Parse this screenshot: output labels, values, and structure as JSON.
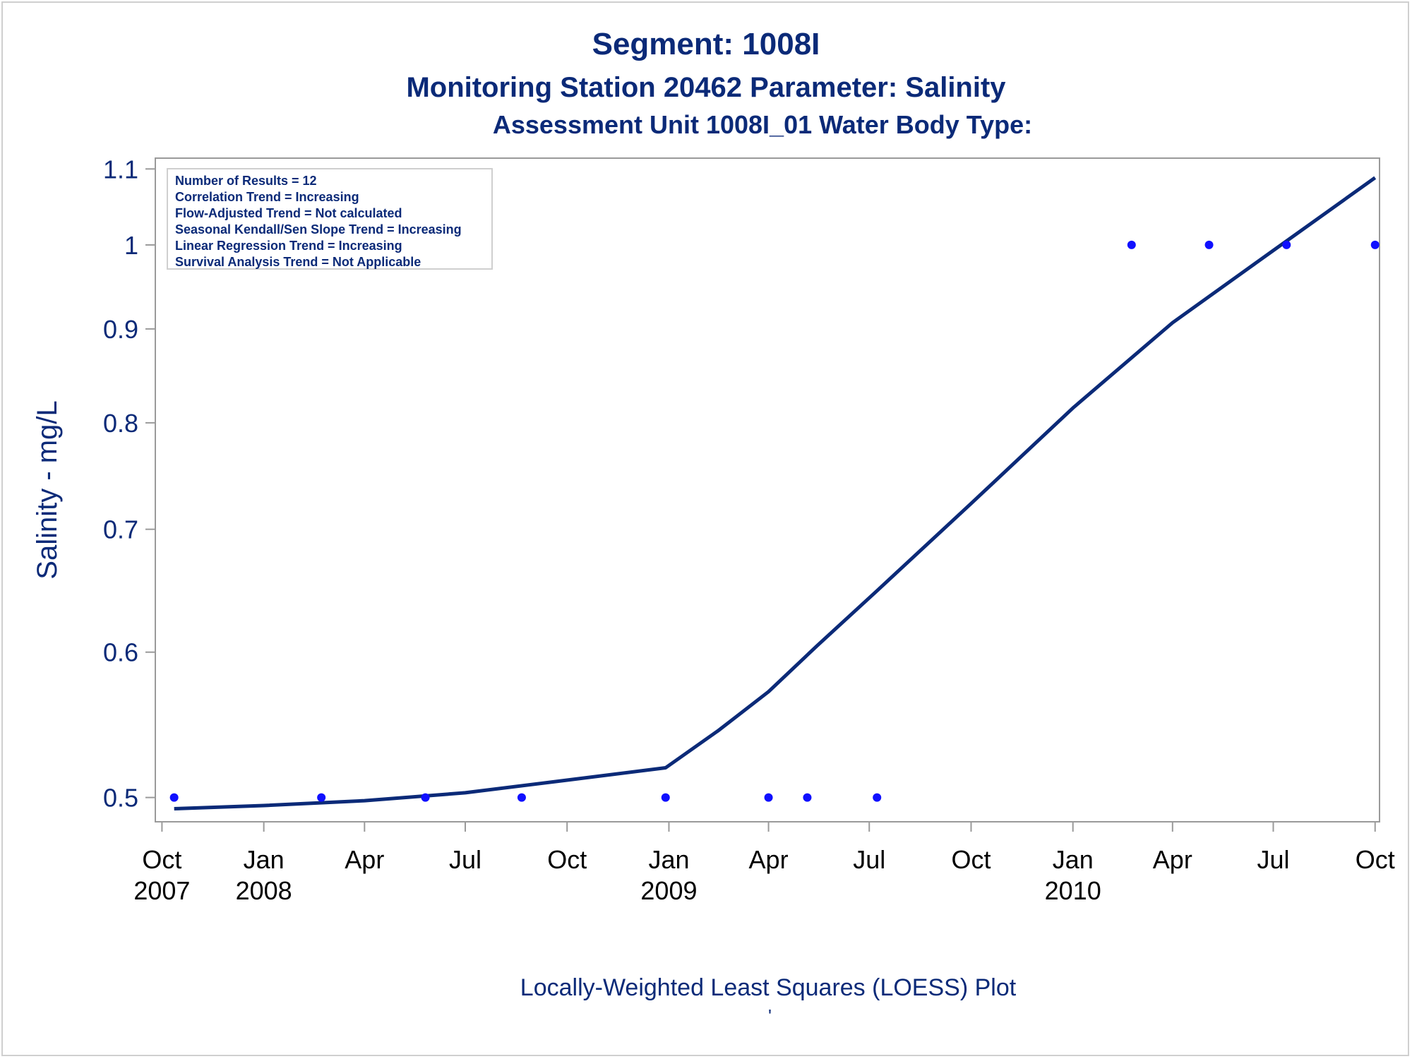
{
  "titles": {
    "line1": "Segment: 1008I",
    "line2": "Monitoring Station 20462 Parameter: Salinity",
    "line3": "Assessment Unit 1008I_01    Water Body Type:"
  },
  "stats": [
    "Number of Results = 12",
    "Correlation Trend = Increasing",
    "Flow-Adjusted Trend = Not calculated",
    "Seasonal Kendall/Sen Slope Trend = Increasing",
    "Linear Regression Trend = Increasing",
    "Survival Analysis Trend = Not Applicable"
  ],
  "footnote": "Locally-Weighted Least Squares (LOESS) Plot",
  "footnote2": "'",
  "colors": {
    "text": "#0b2a78",
    "line": "#0b2a78",
    "points": "#1010ff",
    "frame": "#9a9a9a"
  },
  "chart_data": {
    "type": "scatter",
    "ylabel": "Salinity - mg/L",
    "xlabel": "",
    "scale_y": "log",
    "ylim": [
      0.485,
      1.115
    ],
    "xlim": [
      "2007-09-25",
      "2010-10-05"
    ],
    "y_ticks": [
      {
        "value": 0.5,
        "label": "0.5"
      },
      {
        "value": 0.6,
        "label": "0.6"
      },
      {
        "value": 0.7,
        "label": "0.7"
      },
      {
        "value": 0.8,
        "label": "0.8"
      },
      {
        "value": 0.9,
        "label": "0.9"
      },
      {
        "value": 1.0,
        "label": "1"
      },
      {
        "value": 1.1,
        "label": "1.1"
      }
    ],
    "x_ticks": [
      {
        "date": "2007-10-01",
        "label": "Oct",
        "year": "2007"
      },
      {
        "date": "2008-01-01",
        "label": "Jan",
        "year": "2008"
      },
      {
        "date": "2008-04-01",
        "label": "Apr",
        "year": ""
      },
      {
        "date": "2008-07-01",
        "label": "Jul",
        "year": ""
      },
      {
        "date": "2008-10-01",
        "label": "Oct",
        "year": ""
      },
      {
        "date": "2009-01-01",
        "label": "Jan",
        "year": "2009"
      },
      {
        "date": "2009-04-01",
        "label": "Apr",
        "year": ""
      },
      {
        "date": "2009-07-01",
        "label": "Jul",
        "year": ""
      },
      {
        "date": "2009-10-01",
        "label": "Oct",
        "year": ""
      },
      {
        "date": "2010-01-01",
        "label": "Jan",
        "year": "2010"
      },
      {
        "date": "2010-04-01",
        "label": "Apr",
        "year": ""
      },
      {
        "date": "2010-07-01",
        "label": "Jul",
        "year": ""
      },
      {
        "date": "2010-10-01",
        "label": "Oct",
        "year": ""
      }
    ],
    "grid": false,
    "series": [
      {
        "type": "scatter",
        "points": [
          {
            "x": "2007-10-12",
            "y": 0.5
          },
          {
            "x": "2008-02-22",
            "y": 0.5
          },
          {
            "x": "2008-05-26",
            "y": 0.5
          },
          {
            "x": "2008-08-21",
            "y": 0.5
          },
          {
            "x": "2008-12-29",
            "y": 0.5
          },
          {
            "x": "2009-04-01",
            "y": 0.5
          },
          {
            "x": "2009-05-06",
            "y": 0.5
          },
          {
            "x": "2009-07-08",
            "y": 0.5
          },
          {
            "x": "2010-02-23",
            "y": 1.0
          },
          {
            "x": "2010-05-04",
            "y": 1.0
          },
          {
            "x": "2010-07-13",
            "y": 1.0
          },
          {
            "x": "2010-10-01",
            "y": 1.0
          }
        ]
      },
      {
        "type": "line",
        "points": [
          {
            "x": "2007-10-12",
            "y": 0.493
          },
          {
            "x": "2008-01-01",
            "y": 0.495
          },
          {
            "x": "2008-04-01",
            "y": 0.498
          },
          {
            "x": "2008-07-01",
            "y": 0.503
          },
          {
            "x": "2008-10-01",
            "y": 0.511
          },
          {
            "x": "2008-12-29",
            "y": 0.519
          },
          {
            "x": "2009-02-15",
            "y": 0.544
          },
          {
            "x": "2009-04-01",
            "y": 0.571
          },
          {
            "x": "2009-05-15",
            "y": 0.605
          },
          {
            "x": "2009-07-08",
            "y": 0.648
          },
          {
            "x": "2009-10-01",
            "y": 0.723
          },
          {
            "x": "2010-01-01",
            "y": 0.815
          },
          {
            "x": "2010-04-01",
            "y": 0.907
          },
          {
            "x": "2010-07-01",
            "y": 0.993
          },
          {
            "x": "2010-10-01",
            "y": 1.088
          }
        ]
      }
    ]
  }
}
